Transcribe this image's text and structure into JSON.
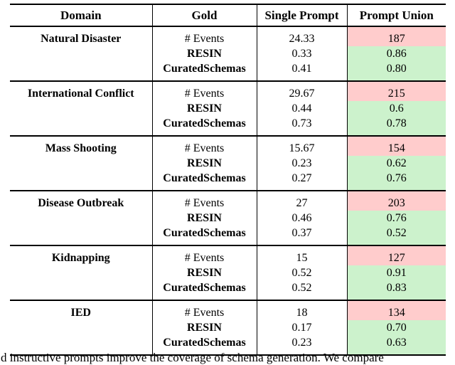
{
  "colors": {
    "red_cell": "#FFCCCC",
    "green_cell": "#CCF2CC",
    "rule": "#000000"
  },
  "table": {
    "headers": [
      "Domain",
      "Gold",
      "Single Prompt",
      "Prompt Union"
    ],
    "groups": [
      {
        "domain": "Natural Disaster",
        "rows": [
          {
            "gold": "# Events",
            "bold": false,
            "single_prompt": "24.33",
            "prompt_union": "187",
            "highlight": "red"
          },
          {
            "gold": "RESIN",
            "bold": true,
            "single_prompt": "0.33",
            "prompt_union": "0.86",
            "highlight": "green"
          },
          {
            "gold": "CuratedSchemas",
            "bold": true,
            "single_prompt": "0.41",
            "prompt_union": "0.80",
            "highlight": "green"
          }
        ]
      },
      {
        "domain": "International Conflict",
        "rows": [
          {
            "gold": "# Events",
            "bold": false,
            "single_prompt": "29.67",
            "prompt_union": "215",
            "highlight": "red"
          },
          {
            "gold": "RESIN",
            "bold": true,
            "single_prompt": "0.44",
            "prompt_union": "0.6",
            "highlight": "green"
          },
          {
            "gold": "CuratedSchemas",
            "bold": true,
            "single_prompt": "0.73",
            "prompt_union": "0.78",
            "highlight": "green"
          }
        ]
      },
      {
        "domain": "Mass Shooting",
        "rows": [
          {
            "gold": "# Events",
            "bold": false,
            "single_prompt": "15.67",
            "prompt_union": "154",
            "highlight": "red"
          },
          {
            "gold": "RESIN",
            "bold": true,
            "single_prompt": "0.23",
            "prompt_union": "0.62",
            "highlight": "green"
          },
          {
            "gold": "CuratedSchemas",
            "bold": true,
            "single_prompt": "0.27",
            "prompt_union": "0.76",
            "highlight": "green"
          }
        ]
      },
      {
        "domain": "Disease Outbreak",
        "rows": [
          {
            "gold": "# Events",
            "bold": false,
            "single_prompt": "27",
            "prompt_union": "203",
            "highlight": "red"
          },
          {
            "gold": "RESIN",
            "bold": true,
            "single_prompt": "0.46",
            "prompt_union": "0.76",
            "highlight": "green"
          },
          {
            "gold": "CuratedSchemas",
            "bold": true,
            "single_prompt": "0.37",
            "prompt_union": "0.52",
            "highlight": "green"
          }
        ]
      },
      {
        "domain": "Kidnapping",
        "rows": [
          {
            "gold": "# Events",
            "bold": false,
            "single_prompt": "15",
            "prompt_union": "127",
            "highlight": "red"
          },
          {
            "gold": "RESIN",
            "bold": true,
            "single_prompt": "0.52",
            "prompt_union": "0.91",
            "highlight": "green"
          },
          {
            "gold": "CuratedSchemas",
            "bold": true,
            "single_prompt": "0.52",
            "prompt_union": "0.83",
            "highlight": "green"
          }
        ]
      },
      {
        "domain": "IED",
        "rows": [
          {
            "gold": "# Events",
            "bold": false,
            "single_prompt": "18",
            "prompt_union": "134",
            "highlight": "red"
          },
          {
            "gold": "RESIN",
            "bold": true,
            "single_prompt": "0.17",
            "prompt_union": "0.70",
            "highlight": "green"
          },
          {
            "gold": "CuratedSchemas",
            "bold": true,
            "single_prompt": "0.23",
            "prompt_union": "0.63",
            "highlight": "green"
          }
        ]
      }
    ]
  },
  "caption": "d instructive prompts improve the coverage of schema generation. We compare"
}
